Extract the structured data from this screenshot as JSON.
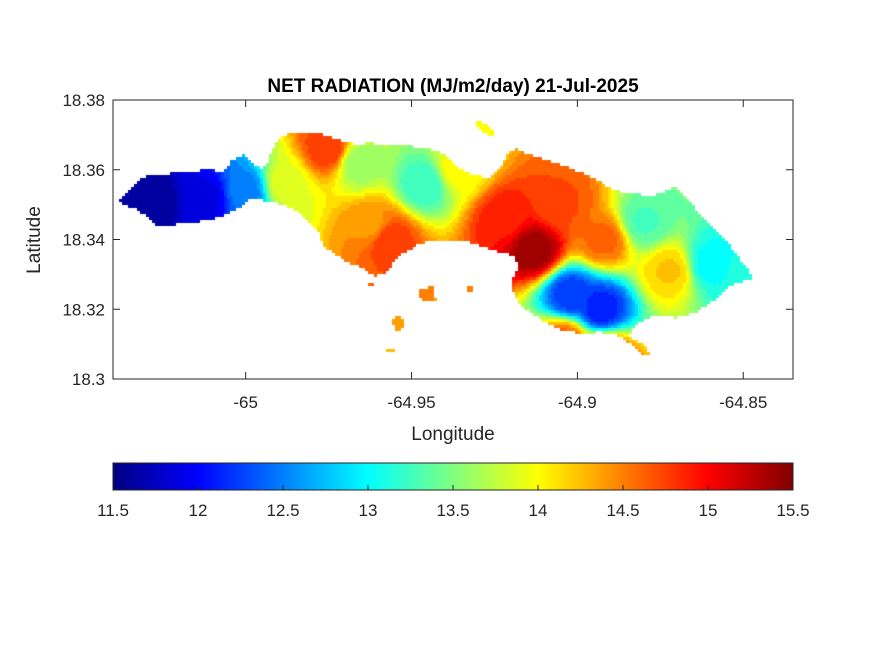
{
  "chart_data": {
    "type": "heatmap",
    "title": "NET RADIATION (MJ/m2/day) 21-Jul-2025",
    "xlabel": "Longitude",
    "ylabel": "Latitude",
    "xlim": [
      -65.04,
      -64.835
    ],
    "ylim": [
      18.3,
      18.38
    ],
    "x_ticks": [
      -65,
      -64.95,
      -64.9,
      -64.85
    ],
    "x_tick_labels": [
      "-65",
      "-64.95",
      "-64.9",
      "-64.85"
    ],
    "y_ticks": [
      18.3,
      18.32,
      18.34,
      18.36,
      18.38
    ],
    "y_tick_labels": [
      "18.3",
      "18.32",
      "18.34",
      "18.36",
      "18.38"
    ],
    "colorbar": {
      "orientation": "horizontal",
      "location": "below",
      "colormap": "jet",
      "range": [
        11.5,
        15.5
      ],
      "ticks": [
        11.5,
        12,
        12.5,
        13,
        13.5,
        14,
        14.5,
        15,
        15.5
      ],
      "tick_labels": [
        "11.5",
        "12",
        "12.5",
        "13",
        "13.5",
        "14",
        "14.5",
        "15",
        "15.5"
      ]
    },
    "field_hotspots": [
      {
        "lon": -65.028,
        "lat": 18.351,
        "value": 11.6
      },
      {
        "lon": -65.012,
        "lat": 18.352,
        "value": 11.9
      },
      {
        "lon": -65.0,
        "lat": 18.354,
        "value": 12.5
      },
      {
        "lon": -64.988,
        "lat": 18.356,
        "value": 13.9
      },
      {
        "lon": -64.975,
        "lat": 18.366,
        "value": 14.8
      },
      {
        "lon": -64.966,
        "lat": 18.362,
        "value": 13.6
      },
      {
        "lon": -64.962,
        "lat": 18.344,
        "value": 14.4
      },
      {
        "lon": -64.957,
        "lat": 18.34,
        "value": 14.8
      },
      {
        "lon": -64.946,
        "lat": 18.356,
        "value": 13.2
      },
      {
        "lon": -64.936,
        "lat": 18.36,
        "value": 14.0
      },
      {
        "lon": -64.922,
        "lat": 18.346,
        "value": 14.9
      },
      {
        "lon": -64.913,
        "lat": 18.337,
        "value": 15.4
      },
      {
        "lon": -64.905,
        "lat": 18.35,
        "value": 14.7
      },
      {
        "lon": -64.902,
        "lat": 18.324,
        "value": 12.2
      },
      {
        "lon": -64.893,
        "lat": 18.32,
        "value": 12.1
      },
      {
        "lon": -64.892,
        "lat": 18.34,
        "value": 14.6
      },
      {
        "lon": -64.88,
        "lat": 18.345,
        "value": 13.3
      },
      {
        "lon": -64.872,
        "lat": 18.331,
        "value": 14.2
      },
      {
        "lon": -64.86,
        "lat": 18.333,
        "value": 13.0
      },
      {
        "lon": -64.85,
        "lat": 18.329,
        "value": 13.1
      },
      {
        "lon": -64.904,
        "lat": 18.311,
        "value": 14.6
      },
      {
        "lon": -64.892,
        "lat": 18.307,
        "value": 14.8
      }
    ]
  }
}
